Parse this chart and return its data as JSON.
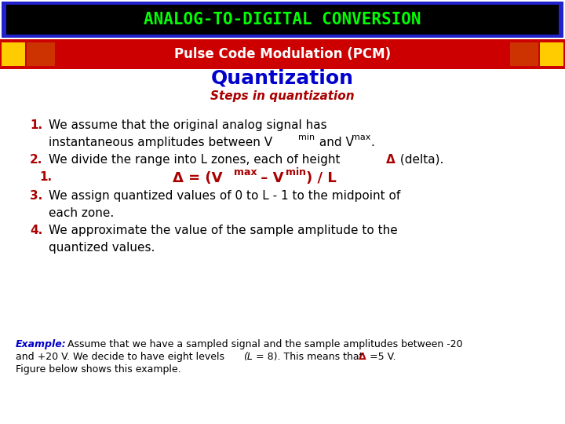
{
  "title_main": "ANALOG-TO-DIGITAL CONVERSION",
  "title_sub": "Pulse Code Modulation (PCM)",
  "title_quant": "Quantization",
  "steps_header": "Steps in quantization",
  "bg_color": "#ffffff",
  "title_bg": "#000000",
  "title_border_color": "#2222cc",
  "subtitle_bg": "#cc0000",
  "subtitle_side_orange": "#cc3300",
  "subtitle_side_yellow": "#ffcc00",
  "title_text_color": "#00ff00",
  "subtitle_text_color": "#ffffff",
  "quant_text_color": "#0000cc",
  "steps_header_color": "#aa0000",
  "body_number_color": "#aa0000",
  "body_text_color": "#000000",
  "delta_color": "#aa0000",
  "example_label_color": "#0000cc",
  "example_text_color": "#000000",
  "title_fontsize": 15,
  "subtitle_fontsize": 12,
  "quant_fontsize": 18,
  "steps_fontsize": 11,
  "body_fontsize": 11,
  "example_fontsize": 9
}
